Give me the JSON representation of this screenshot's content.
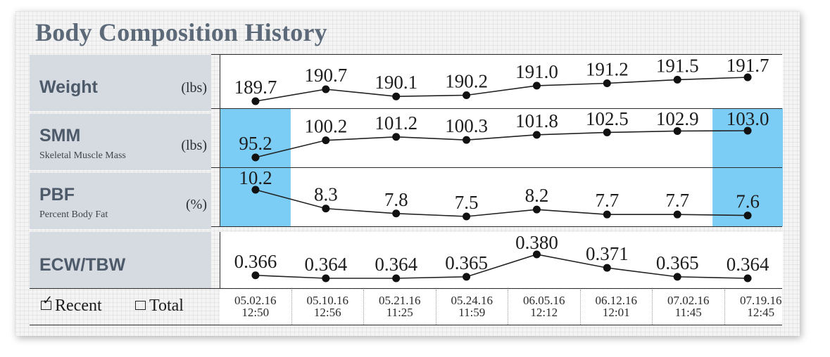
{
  "title": "Body Composition History",
  "rows": [
    {
      "key": "weight",
      "label": "Weight",
      "sublabel": "",
      "unit": "(lbs)",
      "values": [
        "189.7",
        "190.7",
        "190.1",
        "190.2",
        "191.0",
        "191.2",
        "191.5",
        "191.7"
      ],
      "plot": [
        189.7,
        190.7,
        190.1,
        190.2,
        191.0,
        191.2,
        191.5,
        191.7
      ],
      "highlight": []
    },
    {
      "key": "smm",
      "label": "SMM",
      "sublabel": "Skeletal Muscle Mass",
      "unit": "(lbs)",
      "values": [
        "95.2",
        "100.2",
        "101.2",
        "100.3",
        "101.8",
        "102.5",
        "102.9",
        "103.0"
      ],
      "plot": [
        95.2,
        100.2,
        101.2,
        100.3,
        101.8,
        102.5,
        102.9,
        103.0
      ],
      "highlight": [
        0,
        7
      ]
    },
    {
      "key": "pbf",
      "label": "PBF",
      "sublabel": "Percent Body Fat",
      "unit": "(%)",
      "values": [
        "10.2",
        "8.3",
        "7.8",
        "7.5",
        "8.2",
        "7.7",
        "7.7",
        "7.6"
      ],
      "plot": [
        10.2,
        8.3,
        7.8,
        7.5,
        8.2,
        7.7,
        7.7,
        7.6
      ],
      "highlight": [
        0,
        7
      ]
    },
    {
      "key": "ecw",
      "label": "ECW/TBW",
      "sublabel": "",
      "unit": "",
      "values": [
        "0.366",
        "0.364",
        "0.364",
        "0.365",
        "0.380",
        "0.371",
        "0.365",
        "0.364"
      ],
      "plot": [
        0.366,
        0.364,
        0.364,
        0.365,
        0.38,
        0.371,
        0.365,
        0.364
      ],
      "highlight": []
    }
  ],
  "dates": [
    {
      "date": "05.02.16",
      "time": "12:50"
    },
    {
      "date": "05.10.16",
      "time": "12:56"
    },
    {
      "date": "05.21.16",
      "time": "11:25"
    },
    {
      "date": "05.24.16",
      "time": "11:59"
    },
    {
      "date": "06.05.16",
      "time": "12:12"
    },
    {
      "date": "06.12.16",
      "time": "12:01"
    },
    {
      "date": "07.02.16",
      "time": "11:45"
    },
    {
      "date": "07.19.16",
      "time": "12:45"
    }
  ],
  "filters": {
    "recent": {
      "label": "Recent",
      "checked": true
    },
    "total": {
      "label": "Total",
      "checked": false
    },
    "check_glyph": "✓"
  },
  "colors": {
    "highlight": "#7ccdf5",
    "label_bg": "#d6dae1",
    "title": "#5b6978"
  }
}
